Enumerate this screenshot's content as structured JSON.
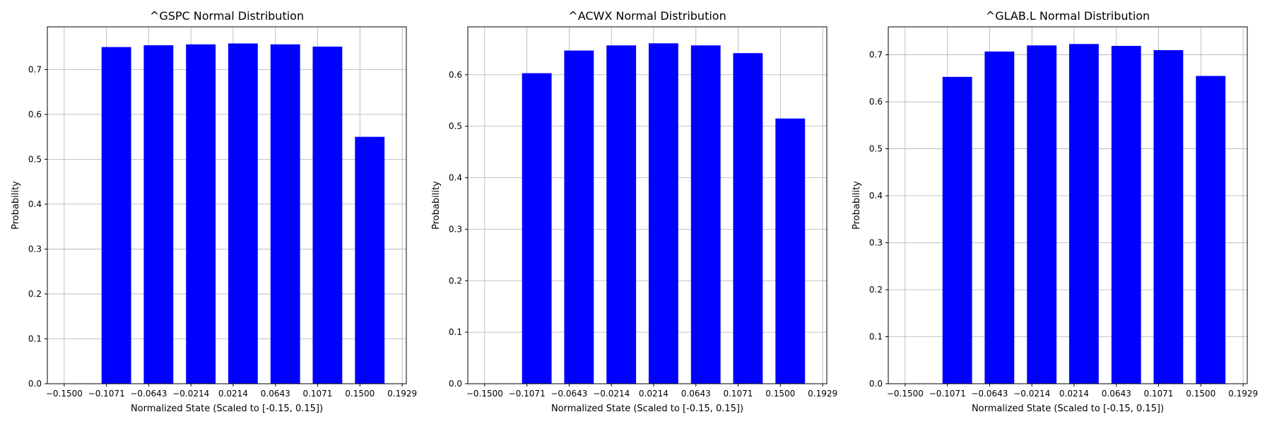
{
  "chart_data": [
    {
      "type": "bar",
      "title": "^GSPC Normal Distribution",
      "xlabel": "Normalized State (Scaled to [-0.15, 0.15])",
      "ylabel": "Probability",
      "xticks": [
        -0.15,
        -0.1071,
        -0.0643,
        -0.0214,
        0.0214,
        0.0643,
        0.1071,
        0.15,
        0.1929
      ],
      "xtick_labels": [
        "−0.1500",
        "−0.1071",
        "−0.0643",
        "−0.0214",
        "0.0214",
        "0.0643",
        "0.1071",
        "0.1500",
        "0.1929"
      ],
      "yticks": [
        0.0,
        0.1,
        0.2,
        0.3,
        0.4,
        0.5,
        0.6,
        0.7
      ],
      "ytick_labels": [
        "0.0",
        "0.1",
        "0.2",
        "0.3",
        "0.4",
        "0.5",
        "0.6",
        "0.7"
      ],
      "xlim": [
        -0.1671,
        0.1971
      ],
      "ylim": [
        0,
        0.795
      ],
      "bar_width": 0.03,
      "x": [
        -0.0971,
        -0.0543,
        -0.0114,
        0.0314,
        0.0743,
        0.1171,
        0.16
      ],
      "values": [
        0.75,
        0.754,
        0.756,
        0.758,
        0.756,
        0.751,
        0.55
      ],
      "color": "#0000ff",
      "grid": true
    },
    {
      "type": "bar",
      "title": "^ACWX Normal Distribution",
      "xlabel": "Normalized State (Scaled to [-0.15, 0.15])",
      "ylabel": "Probability",
      "xticks": [
        -0.15,
        -0.1071,
        -0.0643,
        -0.0214,
        0.0214,
        0.0643,
        0.1071,
        0.15,
        0.1929
      ],
      "xtick_labels": [
        "−0.1500",
        "−0.1071",
        "−0.0643",
        "−0.0214",
        "0.0214",
        "0.0643",
        "0.1071",
        "0.1500",
        "0.1929"
      ],
      "yticks": [
        0.0,
        0.1,
        0.2,
        0.3,
        0.4,
        0.5,
        0.6
      ],
      "ytick_labels": [
        "0.0",
        "0.1",
        "0.2",
        "0.3",
        "0.4",
        "0.5",
        "0.6"
      ],
      "xlim": [
        -0.1671,
        0.1971
      ],
      "ylim": [
        0,
        0.693
      ],
      "bar_width": 0.03,
      "x": [
        -0.0971,
        -0.0543,
        -0.0114,
        0.0314,
        0.0743,
        0.1171,
        0.16
      ],
      "values": [
        0.603,
        0.647,
        0.657,
        0.661,
        0.657,
        0.642,
        0.515
      ],
      "color": "#0000ff",
      "grid": true
    },
    {
      "type": "bar",
      "title": "^GLAB.L Normal Distribution",
      "xlabel": "Normalized State (Scaled to [-0.15, 0.15])",
      "ylabel": "Probability",
      "xticks": [
        -0.15,
        -0.1071,
        -0.0643,
        -0.0214,
        0.0214,
        0.0643,
        0.1071,
        0.15,
        0.1929
      ],
      "xtick_labels": [
        "−0.1500",
        "−0.1071",
        "−0.0643",
        "−0.0214",
        "0.0214",
        "0.0643",
        "0.1071",
        "0.1500",
        "0.1929"
      ],
      "yticks": [
        0.0,
        0.1,
        0.2,
        0.3,
        0.4,
        0.5,
        0.6,
        0.7
      ],
      "ytick_labels": [
        "0.0",
        "0.1",
        "0.2",
        "0.3",
        "0.4",
        "0.5",
        "0.6",
        "0.7"
      ],
      "xlim": [
        -0.1671,
        0.1971
      ],
      "ylim": [
        0,
        0.7595
      ],
      "bar_width": 0.03,
      "x": [
        -0.0971,
        -0.0543,
        -0.0114,
        0.0314,
        0.0743,
        0.1171,
        0.16
      ],
      "values": [
        0.653,
        0.707,
        0.72,
        0.723,
        0.719,
        0.71,
        0.655
      ],
      "color": "#0000ff",
      "grid": true
    }
  ]
}
